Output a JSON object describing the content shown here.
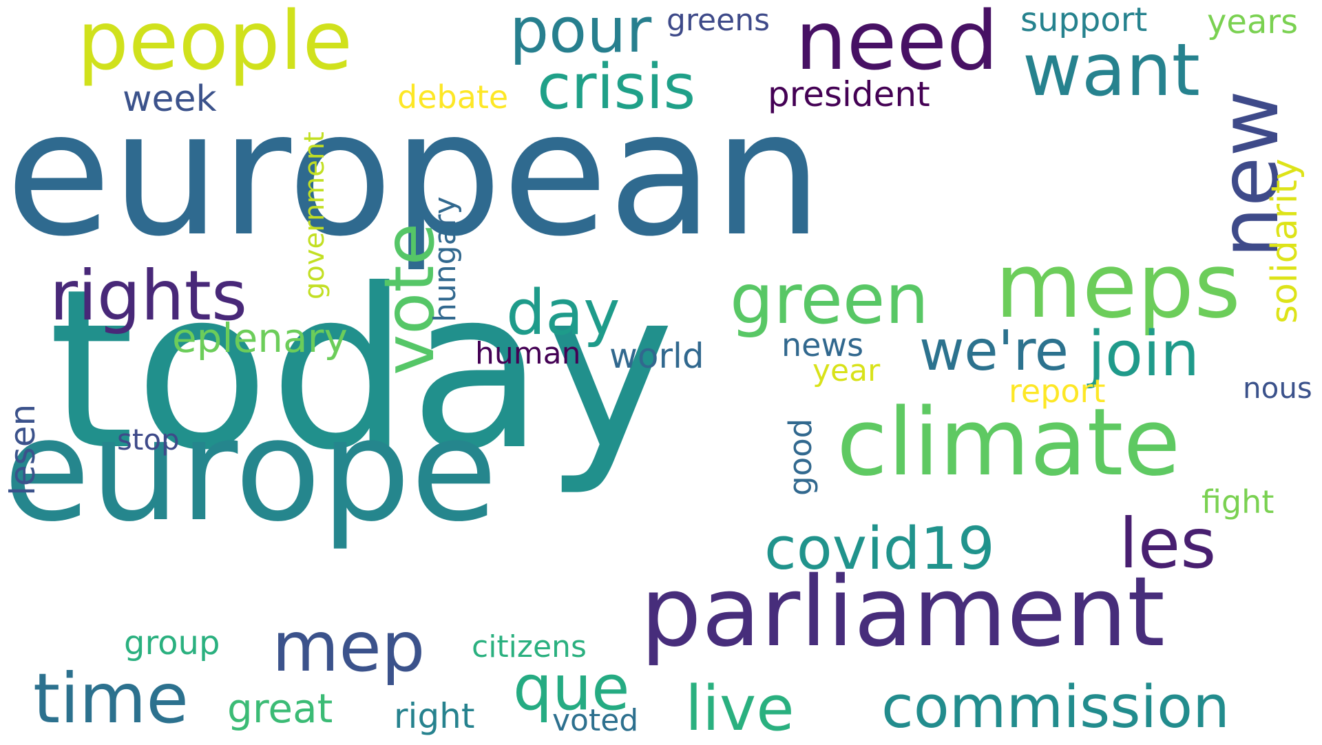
{
  "palette": {
    "c1": "#2e6a8e",
    "c2": "#21908c",
    "c3": "#5fc962",
    "c4": "#452a7a",
    "c5": "#d2e21b",
    "c6": "#28ae80",
    "c7": "#375b8d",
    "c8": "#3b518b",
    "c9": "#a5db36",
    "c10": "#f1e51d",
    "c11": "#440154",
    "c12": "#3b528b"
  },
  "words": {
    "european": "european",
    "today": "today",
    "europe": "europe",
    "parliament": "parliament",
    "climate": "climate",
    "meps": "meps",
    "people": "people",
    "need": "need",
    "pour": "pour",
    "new": "new",
    "want": "want",
    "crisis": "crisis",
    "rights": "rights",
    "vote": "vote",
    "green": "green",
    "join": "join",
    "wer": "we're",
    "day": "day",
    "les": "les",
    "covid19": "covid19",
    "mep": "mep",
    "time": "time",
    "que": "que",
    "live": "live",
    "commission": "commission",
    "eplenary": "eplenary",
    "president": "president",
    "solidarity": "solidarity",
    "greens": "greens",
    "support": "support",
    "years": "years",
    "week": "week",
    "debate": "debate",
    "government": "government",
    "hungary": "hungary",
    "human": "human",
    "world": "world",
    "news": "news",
    "year": "year",
    "report": "report",
    "nous": "nous",
    "lesen": "lesen",
    "stop": "stop",
    "good": "good",
    "fight": "fight",
    "group": "group",
    "citizens": "citizens",
    "great": "great",
    "right": "right",
    "voted": "voted"
  }
}
